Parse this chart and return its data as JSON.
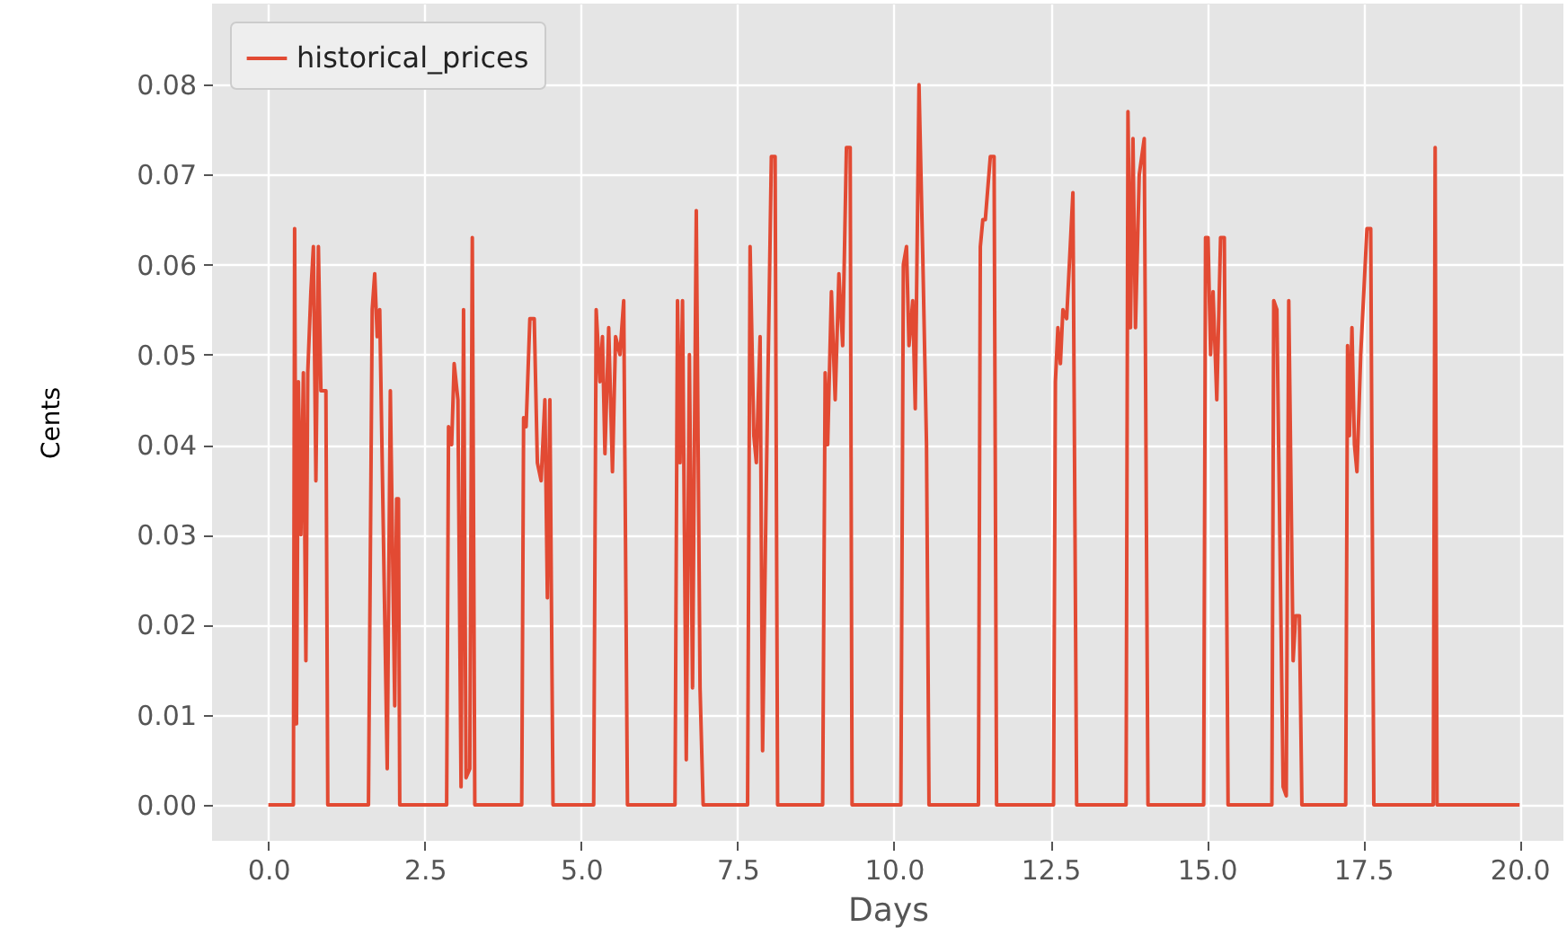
{
  "chart_data": {
    "type": "line",
    "xlabel": "Days",
    "ylabel": "Cents",
    "legend": "top left",
    "grid": true,
    "xlim": [
      -0.9,
      20.7
    ],
    "ylim": [
      -0.004,
      0.089
    ],
    "xticks": [
      {
        "value": 0,
        "label": "0.0"
      },
      {
        "value": 2.5,
        "label": "2.5"
      },
      {
        "value": 5,
        "label": "5.0"
      },
      {
        "value": 7.5,
        "label": "7.5"
      },
      {
        "value": 10,
        "label": "10.0"
      },
      {
        "value": 12.5,
        "label": "12.5"
      },
      {
        "value": 15,
        "label": "15.0"
      },
      {
        "value": 17.5,
        "label": "17.5"
      },
      {
        "value": 20,
        "label": "20.0"
      }
    ],
    "yticks": [
      {
        "value": 0,
        "label": "0.00"
      },
      {
        "value": 0.01,
        "label": "0.01"
      },
      {
        "value": 0.02,
        "label": "0.02"
      },
      {
        "value": 0.03,
        "label": "0.03"
      },
      {
        "value": 0.04,
        "label": "0.04"
      },
      {
        "value": 0.05,
        "label": "0.05"
      },
      {
        "value": 0.06,
        "label": "0.06"
      },
      {
        "value": 0.07,
        "label": "0.07"
      },
      {
        "value": 0.08,
        "label": "0.08"
      }
    ],
    "x": [
      0,
      0.4,
      0.42,
      0.45,
      0.48,
      0.52,
      0.56,
      0.6,
      0.63,
      0.68,
      0.72,
      0.76,
      0.8,
      0.84,
      0.92,
      0.95,
      1.6,
      1.66,
      1.7,
      1.74,
      1.78,
      1.9,
      1.95,
      2.02,
      2.05,
      2.08,
      2.1,
      2.85,
      2.88,
      2.93,
      2.97,
      3.03,
      3.08,
      3.12,
      3.16,
      3.22,
      3.26,
      3.3,
      4.05,
      4.08,
      4.12,
      4.18,
      4.25,
      4.3,
      4.36,
      4.42,
      4.46,
      4.5,
      4.55,
      5.2,
      5.24,
      5.3,
      5.34,
      5.38,
      5.44,
      5.5,
      5.55,
      5.62,
      5.68,
      5.74,
      6.5,
      6.54,
      6.58,
      6.62,
      6.68,
      6.73,
      6.78,
      6.84,
      6.9,
      6.95,
      7.66,
      7.7,
      7.76,
      7.8,
      7.86,
      7.9,
      7.96,
      8.04,
      8.1,
      8.14,
      8.86,
      8.9,
      8.94,
      9.0,
      9.06,
      9.12,
      9.18,
      9.24,
      9.3,
      9.33,
      10.11,
      10.15,
      10.2,
      10.24,
      10.3,
      10.34,
      10.4,
      10.46,
      10.52,
      10.56,
      11.35,
      11.38,
      11.42,
      11.46,
      11.54,
      11.6,
      11.64,
      12.55,
      12.58,
      12.62,
      12.66,
      12.7,
      12.76,
      12.86,
      12.92,
      13.71,
      13.74,
      13.78,
      13.82,
      13.86,
      13.92,
      14.0,
      14.06,
      14.95,
      14.98,
      15.02,
      15.06,
      15.1,
      15.16,
      15.22,
      15.28,
      15.34,
      16.04,
      16.07,
      16.12,
      16.22,
      16.27,
      16.31,
      16.38,
      16.42,
      16.48,
      16.52,
      17.22,
      17.25,
      17.28,
      17.32,
      17.36,
      17.4,
      17.46,
      17.56,
      17.62,
      17.67,
      18.62,
      18.65,
      18.68,
      20
    ],
    "series": [
      {
        "name": "historical_prices",
        "color": "#e24a33",
        "values": [
          0,
          0,
          0.064,
          0.009,
          0.047,
          0.03,
          0.048,
          0.016,
          0.048,
          0.057,
          0.062,
          0.036,
          0.062,
          0.046,
          0.046,
          0,
          0,
          0.055,
          0.059,
          0.052,
          0.055,
          0.004,
          0.046,
          0.011,
          0.034,
          0.034,
          0,
          0,
          0.042,
          0.04,
          0.049,
          0.045,
          0.002,
          0.055,
          0.003,
          0.004,
          0.063,
          0,
          0,
          0.043,
          0.042,
          0.054,
          0.054,
          0.038,
          0.036,
          0.045,
          0.023,
          0.045,
          0,
          0,
          0.055,
          0.047,
          0.052,
          0.039,
          0.053,
          0.037,
          0.052,
          0.05,
          0.056,
          0,
          0,
          0.056,
          0.038,
          0.056,
          0.005,
          0.05,
          0.013,
          0.066,
          0.013,
          0,
          0,
          0.062,
          0.041,
          0.038,
          0.052,
          0.006,
          0.036,
          0.072,
          0.072,
          0,
          0,
          0.048,
          0.04,
          0.057,
          0.045,
          0.059,
          0.051,
          0.073,
          0.073,
          0,
          0,
          0.06,
          0.062,
          0.051,
          0.056,
          0.044,
          0.08,
          0.061,
          0.04,
          0,
          0,
          0.062,
          0.065,
          0.065,
          0.072,
          0.072,
          0,
          0,
          0.047,
          0.053,
          0.049,
          0.055,
          0.054,
          0.068,
          0,
          0,
          0.077,
          0.053,
          0.074,
          0.053,
          0.07,
          0.074,
          0,
          0,
          0.063,
          0.063,
          0.05,
          0.057,
          0.045,
          0.063,
          0.063,
          0,
          0,
          0.056,
          0.055,
          0.002,
          0.001,
          0.056,
          0.016,
          0.021,
          0.021,
          0,
          0,
          0.051,
          0.041,
          0.053,
          0.04,
          0.037,
          0.05,
          0.064,
          0.064,
          0,
          0,
          0.073,
          0,
          0
        ]
      }
    ]
  }
}
